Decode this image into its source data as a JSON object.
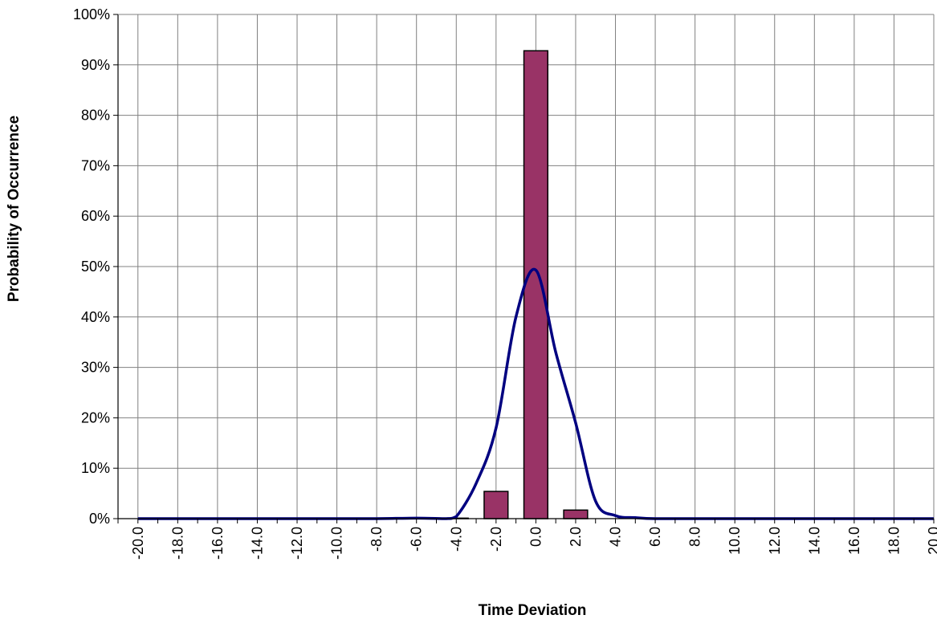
{
  "chart_data": {
    "type": "bar",
    "title": "",
    "xlabel": "Time Deviation",
    "ylabel": "Probability of Occurrence",
    "x_ticks": [
      "-20.0",
      "-18.0",
      "-16.0",
      "-14.0",
      "-12.0",
      "-10.0",
      "-8.0",
      "-6.0",
      "-4.0",
      "-2.0",
      "0.0",
      "2.0",
      "4.0",
      "6.0",
      "8.0",
      "10.0",
      "12.0",
      "14.0",
      "16.0",
      "18.0",
      "20.0"
    ],
    "y_ticks": [
      "0%",
      "10%",
      "20%",
      "30%",
      "40%",
      "50%",
      "60%",
      "70%",
      "80%",
      "90%",
      "100%"
    ],
    "xlim": [
      -21,
      20
    ],
    "ylim": [
      0,
      1
    ],
    "grid": true,
    "legend": "none",
    "series": [
      {
        "kind": "bar",
        "color": "#993366",
        "points": [
          {
            "x": -4,
            "y": 0.001
          },
          {
            "x": -2,
            "y": 0.054
          },
          {
            "x": 0,
            "y": 0.928
          },
          {
            "x": 2,
            "y": 0.017
          }
        ]
      },
      {
        "kind": "line",
        "color": "#000080",
        "smooth": true,
        "points": [
          {
            "x": -20,
            "y": 0
          },
          {
            "x": -18,
            "y": 0
          },
          {
            "x": -16,
            "y": 0
          },
          {
            "x": -14,
            "y": 0
          },
          {
            "x": -12,
            "y": 0
          },
          {
            "x": -10,
            "y": 0
          },
          {
            "x": -8,
            "y": 0
          },
          {
            "x": -6,
            "y": 0.001
          },
          {
            "x": -4.5,
            "y": 0
          },
          {
            "x": -4,
            "y": 0.004
          },
          {
            "x": -3,
            "y": 0.07
          },
          {
            "x": -2,
            "y": 0.18
          },
          {
            "x": -1,
            "y": 0.4
          },
          {
            "x": 0,
            "y": 0.493
          },
          {
            "x": 1,
            "y": 0.33
          },
          {
            "x": 2,
            "y": 0.19
          },
          {
            "x": 3,
            "y": 0.035
          },
          {
            "x": 4,
            "y": 0.006
          },
          {
            "x": 5,
            "y": 0.002
          },
          {
            "x": 6,
            "y": 0
          },
          {
            "x": 8,
            "y": 0
          },
          {
            "x": 10,
            "y": 0
          },
          {
            "x": 12,
            "y": 0
          },
          {
            "x": 14,
            "y": 0
          },
          {
            "x": 16,
            "y": 0
          },
          {
            "x": 18,
            "y": 0
          },
          {
            "x": 20,
            "y": 0
          }
        ]
      }
    ]
  }
}
